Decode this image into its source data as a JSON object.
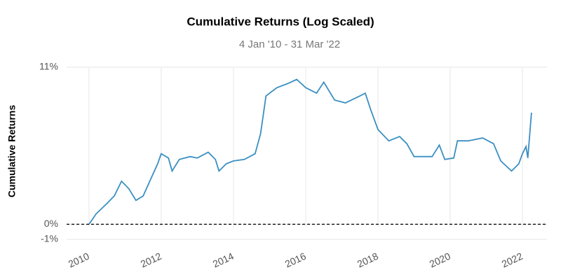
{
  "chart_data": {
    "type": "line",
    "title": "Cumulative Returns (Log Scaled)",
    "subtitle": "4 Jan '10 - 31 Mar '22",
    "y_label": "Cumulative Returns",
    "yscale": "log",
    "grid": true,
    "baseline": 0,
    "x": [
      2010.0,
      2010.2,
      2010.5,
      2010.7,
      2010.9,
      2011.1,
      2011.3,
      2011.5,
      2011.7,
      2011.9,
      2012.0,
      2012.2,
      2012.3,
      2012.5,
      2012.8,
      2013.0,
      2013.3,
      2013.5,
      2013.6,
      2013.8,
      2014.0,
      2014.3,
      2014.6,
      2014.75,
      2014.9,
      2015.2,
      2015.5,
      2015.75,
      2016.0,
      2016.3,
      2016.5,
      2016.8,
      2017.1,
      2017.5,
      2017.65,
      2017.8,
      2018.0,
      2018.3,
      2018.6,
      2018.8,
      2019.0,
      2019.5,
      2019.7,
      2019.85,
      2020.1,
      2020.2,
      2020.5,
      2020.9,
      2021.2,
      2021.4,
      2021.7,
      2021.9,
      2022.0,
      2022.1,
      2022.15,
      2022.25
    ],
    "series": [
      {
        "name": "Cumulative Returns",
        "color": "#3a8fc1",
        "values": [
          0,
          0.7,
          1.4,
          1.9,
          2.9,
          2.4,
          1.6,
          1.9,
          3.0,
          4.1,
          4.8,
          4.5,
          3.6,
          4.4,
          4.6,
          4.5,
          4.9,
          4.4,
          3.6,
          4.1,
          4.3,
          4.4,
          4.8,
          6.2,
          8.9,
          9.5,
          9.8,
          10.1,
          9.5,
          9.1,
          9.9,
          8.6,
          8.4,
          8.9,
          9.1,
          7.9,
          6.5,
          5.7,
          6.0,
          5.5,
          4.6,
          4.6,
          5.4,
          4.4,
          4.5,
          5.7,
          5.7,
          5.9,
          5.5,
          4.3,
          3.6,
          4.1,
          4.8,
          5.3,
          4.5,
          7.7
        ]
      }
    ],
    "xlim": [
      2009.38,
      2022.68
    ],
    "xticks": [
      2010,
      2012,
      2014,
      2016,
      2018,
      2020,
      2022
    ],
    "ylim": [
      -1,
      11
    ],
    "yticks": [
      {
        "value": 11,
        "label": "11%"
      },
      {
        "value": 0,
        "label": "0%"
      },
      {
        "value": -1,
        "label": "-1%"
      }
    ]
  }
}
